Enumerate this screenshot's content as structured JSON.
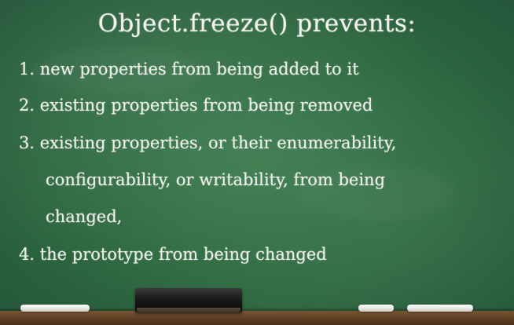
{
  "title": "Object.freeze() prevents:",
  "items": [
    "1. new properties from being added to it",
    "2. existing properties from being removed",
    "3. existing properties, or their enumerability,",
    "configurability, or writability, from being",
    "changed,",
    "4. the prototype from being changed"
  ],
  "colors": {
    "board": "#2f6a41",
    "chalk_text": "#eef0ea",
    "ledge": "#5c3c22",
    "eraser": "#1a1a1a"
  }
}
